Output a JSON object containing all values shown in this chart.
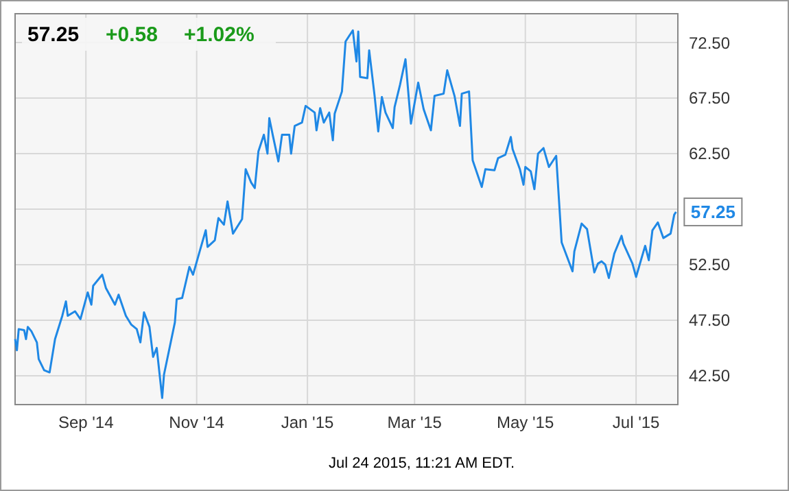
{
  "chart_data": {
    "type": "line",
    "x": [
      "2014-07-24",
      "2014-07-25",
      "2014-07-26",
      "2014-07-29",
      "2014-07-30",
      "2014-07-31",
      "2014-08-02",
      "2014-08-05",
      "2014-08-06",
      "2014-08-09",
      "2014-08-12",
      "2014-08-15",
      "2014-08-19",
      "2014-08-21",
      "2014-08-22",
      "2014-08-26",
      "2014-08-29",
      "2014-09-02",
      "2014-09-04",
      "2014-09-05",
      "2014-09-10",
      "2014-09-12",
      "2014-09-17",
      "2014-09-19",
      "2014-09-23",
      "2014-09-26",
      "2014-09-29",
      "2014-10-01",
      "2014-10-03",
      "2014-10-06",
      "2014-10-08",
      "2014-10-10",
      "2014-10-13",
      "2014-10-14",
      "2014-10-20",
      "2014-10-21",
      "2014-10-24",
      "2014-10-28",
      "2014-10-30",
      "2014-11-03",
      "2014-11-06",
      "2014-11-07",
      "2014-11-11",
      "2014-11-13",
      "2014-11-16",
      "2014-11-18",
      "2014-11-21",
      "2014-11-26",
      "2014-11-28",
      "2014-12-01",
      "2014-12-03",
      "2014-12-05",
      "2014-12-08",
      "2014-12-10",
      "2014-12-11",
      "2014-12-13",
      "2014-12-16",
      "2014-12-18",
      "2014-12-22",
      "2014-12-23",
      "2014-12-25",
      "2014-12-29",
      "2014-12-31",
      "2015-01-05",
      "2015-01-06",
      "2015-01-08",
      "2015-01-10",
      "2015-01-13",
      "2015-01-15",
      "2015-01-16",
      "2015-01-20",
      "2015-01-22",
      "2015-01-26",
      "2015-01-28",
      "2015-01-29",
      "2015-01-30",
      "2015-02-03",
      "2015-02-04",
      "2015-02-07",
      "2015-02-09",
      "2015-02-11",
      "2015-02-13",
      "2015-02-17",
      "2015-02-18",
      "2015-02-21",
      "2015-02-24",
      "2015-02-27",
      "2015-03-03",
      "2015-03-06",
      "2015-03-10",
      "2015-03-12",
      "2015-03-17",
      "2015-03-19",
      "2015-03-23",
      "2015-03-26",
      "2015-03-27",
      "2015-03-31",
      "2015-04-02",
      "2015-04-07",
      "2015-04-09",
      "2015-04-14",
      "2015-04-16",
      "2015-04-20",
      "2015-04-23",
      "2015-04-24",
      "2015-04-28",
      "2015-04-30",
      "2015-05-01",
      "2015-05-04",
      "2015-05-06",
      "2015-05-08",
      "2015-05-11",
      "2015-05-14",
      "2015-05-18",
      "2015-05-21",
      "2015-05-27",
      "2015-05-28",
      "2015-06-01",
      "2015-06-04",
      "2015-06-08",
      "2015-06-10",
      "2015-06-12",
      "2015-06-14",
      "2015-06-16",
      "2015-06-19",
      "2015-06-23",
      "2015-06-24",
      "2015-06-29",
      "2015-07-01",
      "2015-07-06",
      "2015-07-08",
      "2015-07-10",
      "2015-07-13",
      "2015-07-16",
      "2015-07-20",
      "2015-07-22",
      "2015-07-23"
    ],
    "series": [
      {
        "color": "#1f88e5",
        "values": [
          45.8,
          44.8,
          46.7,
          46.6,
          45.8,
          46.9,
          46.5,
          45.5,
          44.0,
          43.0,
          42.8,
          45.8,
          47.9,
          49.2,
          47.9,
          48.3,
          47.6,
          50.0,
          48.9,
          50.6,
          51.6,
          50.4,
          48.9,
          49.8,
          47.9,
          47.1,
          46.7,
          45.5,
          48.2,
          46.9,
          44.2,
          45.0,
          40.5,
          42.6,
          47.3,
          49.4,
          49.5,
          52.3,
          51.6,
          53.9,
          55.6,
          54.1,
          54.7,
          56.7,
          56.1,
          58.2,
          55.3,
          56.6,
          61.1,
          59.9,
          59.4,
          62.7,
          64.2,
          62.5,
          65.7,
          64.1,
          61.8,
          64.2,
          64.2,
          62.5,
          65.0,
          65.3,
          66.8,
          66.2,
          64.6,
          66.6,
          65.3,
          66.2,
          63.7,
          66.1,
          68.1,
          72.6,
          73.6,
          70.8,
          73.5,
          69.4,
          69.3,
          71.8,
          67.7,
          64.5,
          67.6,
          66.2,
          64.8,
          66.7,
          68.7,
          71.0,
          65.2,
          68.9,
          66.5,
          64.6,
          67.7,
          67.9,
          70.0,
          67.7,
          65.0,
          67.9,
          68.1,
          61.9,
          59.5,
          61.1,
          61.0,
          62.1,
          62.4,
          64.0,
          62.9,
          61.1,
          59.7,
          61.3,
          60.9,
          59.3,
          62.5,
          63.0,
          61.3,
          62.3,
          54.5,
          51.9,
          53.7,
          56.2,
          55.7,
          51.8,
          52.6,
          52.8,
          52.5,
          51.3,
          53.5,
          55.1,
          54.4,
          52.6,
          51.4,
          54.2,
          52.9,
          55.6,
          56.3,
          54.9,
          55.3,
          57.0,
          57.25
        ]
      }
    ],
    "xlim": [
      "2014-07-24",
      "2015-07-24"
    ],
    "xticks": [
      {
        "value": "2014-09-01",
        "label": "Sep '14"
      },
      {
        "value": "2014-11-01",
        "label": "Nov '14"
      },
      {
        "value": "2015-01-01",
        "label": "Jan '15"
      },
      {
        "value": "2015-03-01",
        "label": "Mar '15"
      },
      {
        "value": "2015-05-01",
        "label": "May '15"
      },
      {
        "value": "2015-07-01",
        "label": "Jul '15"
      }
    ],
    "ylim": [
      39.9,
      75.1
    ],
    "yticks": [
      {
        "value": 42.5,
        "label": "42.50"
      },
      {
        "value": 47.5,
        "label": "47.50"
      },
      {
        "value": 52.5,
        "label": "52.50"
      },
      {
        "value": 57.5,
        "label": null
      },
      {
        "value": 62.5,
        "label": "62.50"
      },
      {
        "value": 67.5,
        "label": "67.50"
      },
      {
        "value": 72.5,
        "label": "72.50"
      }
    ],
    "grid": true,
    "marker": "none",
    "line_style": "solid",
    "annotations": [
      "57.25",
      "+0.58",
      "+1.02%",
      "Jul 24 2015, 11:21 AM EDT.",
      {
        "text": "57.25",
        "x": "2015-07-23",
        "y": 57.25
      }
    ]
  }
}
